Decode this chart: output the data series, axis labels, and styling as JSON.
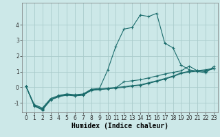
{
  "bg_color": "#cce8e8",
  "grid_color": "#aacccc",
  "line_color": "#1a6b6b",
  "xlabel": "Humidex (Indice chaleur)",
  "xlabel_fontsize": 7,
  "tick_fontsize": 5.5,
  "xlim": [
    -0.5,
    23.5
  ],
  "ylim": [
    -1.6,
    5.4
  ],
  "yticks": [
    -1,
    0,
    1,
    2,
    3,
    4
  ],
  "xticks": [
    0,
    1,
    2,
    3,
    4,
    5,
    6,
    7,
    8,
    9,
    10,
    11,
    12,
    13,
    14,
    15,
    16,
    17,
    18,
    19,
    20,
    21,
    22,
    23
  ],
  "series": [
    {
      "y": [
        0.05,
        -1.2,
        -1.45,
        -0.82,
        -0.6,
        -0.5,
        -0.55,
        -0.5,
        -0.2,
        -0.15,
        -0.1,
        -0.05,
        0.0,
        0.08,
        0.12,
        0.25,
        0.38,
        0.52,
        0.68,
        0.88,
        0.98,
        1.03,
        1.08,
        1.18
      ]
    },
    {
      "y": [
        0.05,
        -1.1,
        -1.32,
        -0.72,
        -0.52,
        -0.42,
        -0.47,
        -0.42,
        -0.12,
        -0.07,
        1.1,
        2.62,
        3.72,
        3.82,
        4.62,
        4.52,
        4.72,
        2.82,
        2.52,
        1.42,
        1.12,
        1.02,
        0.92,
        1.32
      ]
    },
    {
      "y": [
        0.05,
        -1.18,
        -1.42,
        -0.8,
        -0.58,
        -0.48,
        -0.53,
        -0.48,
        -0.18,
        -0.13,
        -0.08,
        -0.03,
        0.35,
        0.42,
        0.48,
        0.6,
        0.72,
        0.85,
        0.95,
        1.05,
        1.35,
        1.05,
        1.0,
        1.22
      ]
    },
    {
      "y": [
        0.05,
        -1.15,
        -1.38,
        -0.78,
        -0.56,
        -0.46,
        -0.51,
        -0.46,
        -0.16,
        -0.11,
        -0.06,
        -0.01,
        0.04,
        0.11,
        0.16,
        0.29,
        0.42,
        0.56,
        0.72,
        0.92,
        1.02,
        1.07,
        1.12,
        1.22
      ]
    }
  ]
}
